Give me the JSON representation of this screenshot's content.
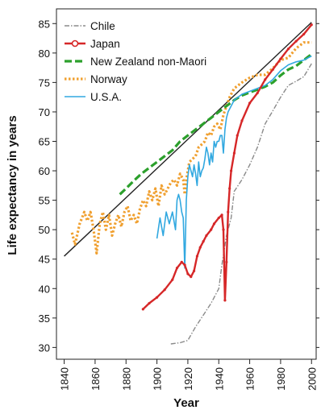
{
  "chart_data": {
    "type": "line",
    "title": "",
    "xlabel": "Year",
    "ylabel": "Life expectancy in years",
    "xlim": [
      1835,
      2003
    ],
    "ylim": [
      28,
      87.5
    ],
    "x_ticks": [
      1840,
      1860,
      1880,
      1900,
      1920,
      1940,
      1960,
      1980,
      2000
    ],
    "y_ticks": [
      30,
      35,
      40,
      45,
      50,
      55,
      60,
      65,
      70,
      75,
      80,
      85
    ],
    "grid": false,
    "legend_position": "top-left",
    "trend_line": {
      "x": [
        1840,
        2000
      ],
      "y": [
        45.5,
        85.2
      ],
      "color": "#222222"
    },
    "series": [
      {
        "name": "Chile",
        "color": "#8a8a8a",
        "style": "dashdot",
        "x": [
          1909,
          1915,
          1920,
          1925,
          1930,
          1935,
          1940,
          1942,
          1945,
          1948,
          1950,
          1955,
          1960,
          1965,
          1970,
          1975,
          1980,
          1985,
          1990,
          1995,
          2000
        ],
        "y": [
          30.6,
          30.8,
          31.2,
          33.5,
          35.5,
          37.5,
          40,
          44,
          49,
          52,
          56.5,
          58.5,
          61,
          64,
          68,
          70.2,
          72.5,
          74.5,
          75.2,
          76,
          78.2
        ]
      },
      {
        "name": "Japan",
        "color": "#d62728",
        "style": "solid-dot",
        "x": [
          1891,
          1895,
          1900,
          1905,
          1910,
          1913,
          1916,
          1918,
          1920,
          1922,
          1924,
          1926,
          1928,
          1930,
          1932,
          1935,
          1937,
          1940,
          1942,
          1943,
          1944,
          1945,
          1946,
          1947,
          1948,
          1950,
          1952,
          1955,
          1960,
          1965,
          1970,
          1975,
          1980,
          1985,
          1990,
          1995,
          2000
        ],
        "y": [
          36.5,
          37.5,
          38.5,
          39.8,
          41.5,
          43.5,
          44.5,
          44,
          42.5,
          42,
          43,
          45.5,
          47,
          48,
          49,
          50,
          51,
          52,
          52.5,
          50,
          38,
          44.5,
          53,
          57,
          60,
          63,
          66,
          68.5,
          71.5,
          73.2,
          75.5,
          77.2,
          79,
          80.7,
          82,
          83.2,
          84.8
        ]
      },
      {
        "name": "New Zealand non-Maori",
        "color": "#2ca02c",
        "style": "dashed",
        "x": [
          1876,
          1880,
          1885,
          1890,
          1895,
          1900,
          1905,
          1910,
          1915,
          1920,
          1925,
          1930,
          1935,
          1940,
          1945,
          1950,
          1955,
          1960,
          1965,
          1970,
          1975,
          1980,
          1985,
          1990,
          1995,
          2000
        ],
        "y": [
          56,
          57,
          58.3,
          59.5,
          60.5,
          61.5,
          62.5,
          63.5,
          65,
          66,
          67,
          68,
          69,
          70,
          71,
          72,
          72.8,
          73.3,
          73.8,
          74.3,
          75,
          76.2,
          77.2,
          77.8,
          78.8,
          79.8
        ]
      },
      {
        "name": "Norway",
        "color": "#f0a030",
        "style": "dotted",
        "x": [
          1845,
          1847,
          1850,
          1853,
          1855,
          1857,
          1859,
          1861,
          1863,
          1865,
          1867,
          1869,
          1871,
          1873,
          1875,
          1877,
          1879,
          1881,
          1883,
          1885,
          1887,
          1889,
          1891,
          1893,
          1895,
          1897,
          1899,
          1901,
          1903,
          1905,
          1907,
          1909,
          1911,
          1913,
          1915,
          1917,
          1918,
          1919,
          1921,
          1923,
          1925,
          1927,
          1929,
          1931,
          1933,
          1935,
          1937,
          1939,
          1941,
          1943,
          1945,
          1947,
          1950,
          1955,
          1960,
          1965,
          1970,
          1975,
          1980,
          1985,
          1990,
          1995,
          2000
        ],
        "y": [
          49.5,
          47.5,
          51,
          53,
          51.5,
          53,
          50,
          46,
          51,
          53,
          50,
          52.5,
          49,
          51,
          52.5,
          50.5,
          53,
          54,
          51.5,
          52.5,
          51,
          53.5,
          55,
          54,
          56.5,
          55,
          57,
          54,
          57.5,
          56,
          57,
          58,
          58.5,
          57.5,
          59.5,
          58.5,
          56,
          58.5,
          61.5,
          62,
          62.5,
          64,
          64.5,
          65,
          66.5,
          66,
          67.5,
          68,
          67,
          69.5,
          71,
          72.5,
          74,
          75,
          75.8,
          76.3,
          76.3,
          77.4,
          78.8,
          79.2,
          80.8,
          81.8,
          81.8
        ]
      },
      {
        "name": "U.S.A.",
        "color": "#31a8e0",
        "style": "solid",
        "x": [
          1900,
          1902,
          1904,
          1906,
          1908,
          1910,
          1912,
          1913,
          1914,
          1915,
          1916,
          1917,
          1918,
          1919,
          1920,
          1921,
          1922,
          1923,
          1924,
          1925,
          1926,
          1927,
          1928,
          1929,
          1930,
          1931,
          1932,
          1933,
          1934,
          1935,
          1936,
          1937,
          1938,
          1939,
          1940,
          1941,
          1942,
          1943,
          1944,
          1945,
          1946,
          1948,
          1950,
          1955,
          1960,
          1965,
          1970,
          1975,
          1980,
          1985,
          1990,
          1995,
          2000
        ],
        "y": [
          48.5,
          52,
          49,
          53,
          51,
          53,
          50,
          55,
          56,
          55,
          53,
          52,
          43.5,
          55,
          59,
          61,
          60,
          59,
          61,
          59.5,
          57.5,
          61.5,
          59,
          60,
          60.5,
          62,
          64,
          63,
          61,
          63,
          61.5,
          65,
          64,
          65,
          65,
          66,
          66,
          63,
          67,
          69,
          70,
          71,
          72,
          73,
          73.5,
          74,
          74.5,
          75.5,
          77,
          78,
          78.5,
          78.8,
          79.5
        ]
      }
    ]
  }
}
